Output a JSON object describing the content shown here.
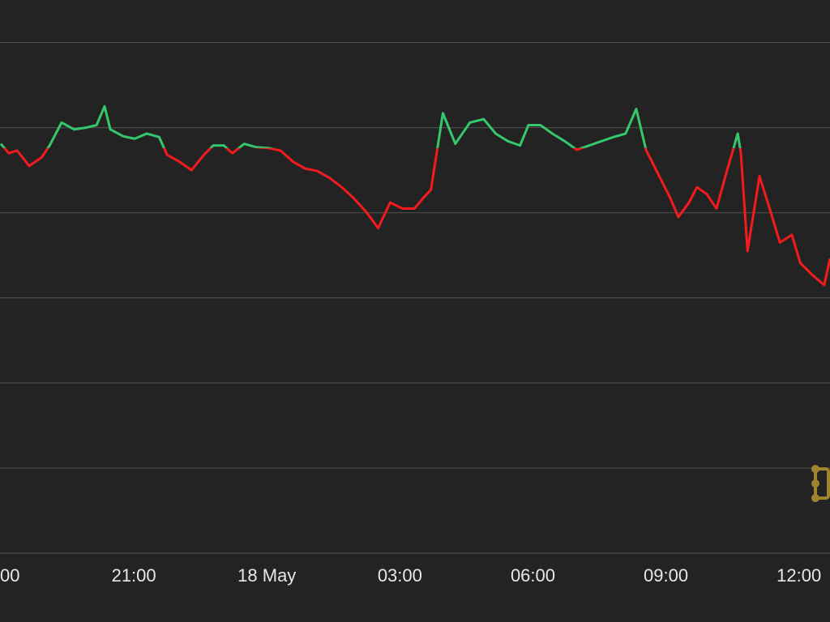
{
  "chart_data": {
    "type": "line",
    "x": [
      0.0,
      0.18,
      0.37,
      0.64,
      0.92,
      1.1,
      1.37,
      1.65,
      1.92,
      2.16,
      2.34,
      2.47,
      2.75,
      3.02,
      3.29,
      3.57,
      3.75,
      4.03,
      4.3,
      4.58,
      4.79,
      5.03,
      5.22,
      5.49,
      5.76,
      6.04,
      6.31,
      6.59,
      6.86,
      7.14,
      7.41,
      7.69,
      7.96,
      8.24,
      8.51,
      8.78,
      9.06,
      9.33,
      9.52,
      9.7,
      9.97,
      10.25,
      10.58,
      10.89,
      11.16,
      11.44,
      11.71,
      11.9,
      12.17,
      12.44,
      12.72,
      12.99,
      13.27,
      13.54,
      13.82,
      14.09,
      14.33,
      14.55,
      14.82,
      15.1,
      15.28,
      15.52,
      15.7,
      15.92,
      16.14,
      16.38,
      16.62,
      16.69,
      16.84,
      17.11,
      17.35,
      17.57,
      17.84,
      18.03,
      18.3,
      18.57,
      18.7
    ],
    "values": [
      4.81,
      4.7,
      4.73,
      4.55,
      4.65,
      4.79,
      5.06,
      4.98,
      5.0,
      5.03,
      5.25,
      4.98,
      4.9,
      4.87,
      4.93,
      4.89,
      4.68,
      4.6,
      4.5,
      4.68,
      4.79,
      4.79,
      4.7,
      4.81,
      4.77,
      4.76,
      4.73,
      4.6,
      4.52,
      4.49,
      4.41,
      4.3,
      4.17,
      4.01,
      3.82,
      4.12,
      4.05,
      4.05,
      4.17,
      4.27,
      5.17,
      4.81,
      5.06,
      5.1,
      4.93,
      4.84,
      4.79,
      5.03,
      5.03,
      4.93,
      4.84,
      4.74,
      4.79,
      4.84,
      4.89,
      4.93,
      5.22,
      4.74,
      4.46,
      4.17,
      3.95,
      4.12,
      4.3,
      4.22,
      4.05,
      4.5,
      4.93,
      4.7,
      3.55,
      4.43,
      4.03,
      3.65,
      3.74,
      3.41,
      3.27,
      3.15,
      3.46
    ],
    "baseline": 4.76,
    "up_color": "#34c86c",
    "down_color": "#f31b1e",
    "xlim": [
      0,
      18.7
    ],
    "xticks": [
      {
        "value": 0,
        "label": "00"
      },
      {
        "value": 3,
        "label": "21:00"
      },
      {
        "value": 6,
        "label": "18 May"
      },
      {
        "value": 9,
        "label": "03:00"
      },
      {
        "value": 12,
        "label": "06:00"
      },
      {
        "value": 15,
        "label": "09:00"
      },
      {
        "value": 18,
        "label": "12:00"
      }
    ],
    "ylim": [
      0,
      6.5
    ],
    "yticks": [
      0,
      1,
      2,
      3,
      4,
      5,
      6
    ],
    "grid": true
  }
}
